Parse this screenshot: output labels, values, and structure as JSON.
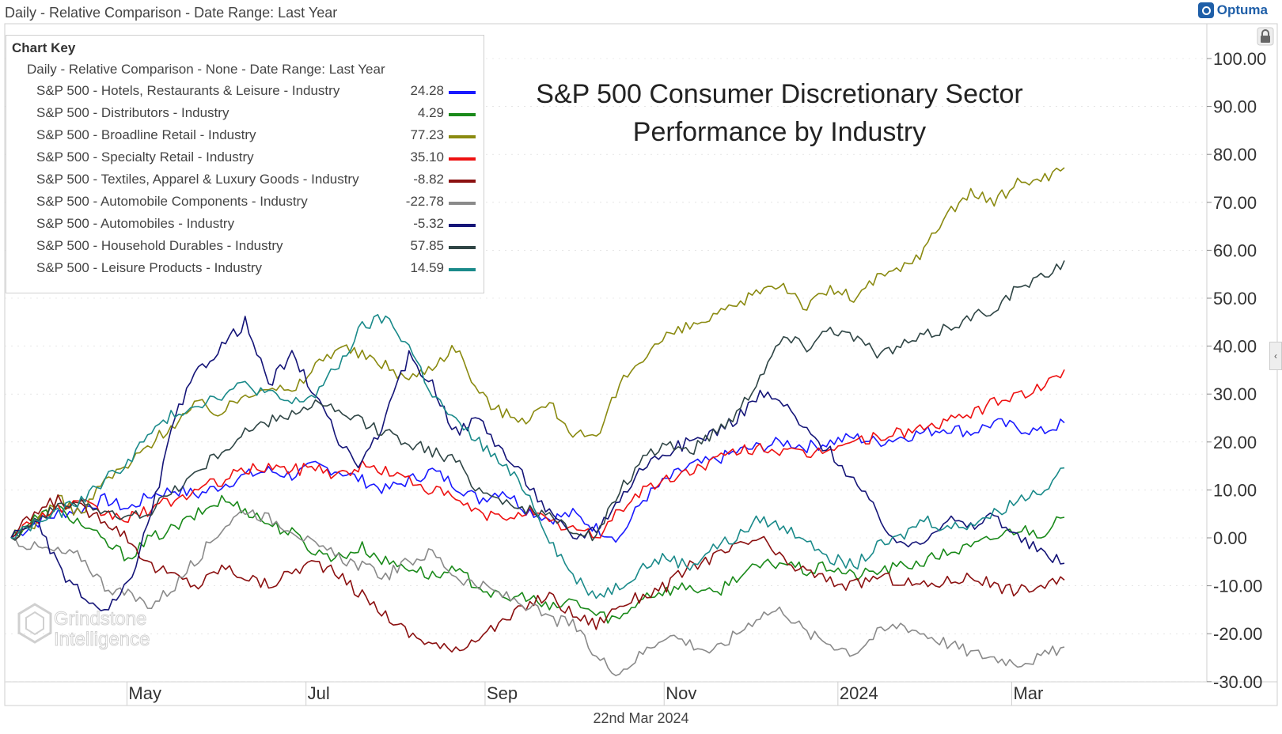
{
  "header": {
    "title": "Daily - Relative Comparison - Date Range: Last Year",
    "brand": "Optuma"
  },
  "footer": {
    "date": "22nd Mar 2024"
  },
  "watermark": {
    "line1": "Grindstone",
    "line2": "Intelligence"
  },
  "colors": {
    "grid": "#d7d7d7",
    "axis_text": "#333333"
  },
  "icons": {
    "lock": "lock-icon",
    "collapse": "chevron-left-icon"
  },
  "chart_data": {
    "type": "line",
    "title": "S&P 500 Consumer Discretionary Sector Performance by Industry",
    "title_lines": [
      "S&P 500 Consumer Discretionary Sector",
      "Performance by Industry"
    ],
    "legend_title": "Chart Key",
    "legend_subtitle": "Daily - Relative Comparison - None - Date Range: Last Year",
    "x_ticks": [
      {
        "label": "May",
        "t": 0.11
      },
      {
        "label": "Jul",
        "t": 0.28
      },
      {
        "label": "Sep",
        "t": 0.45
      },
      {
        "label": "Nov",
        "t": 0.62
      },
      {
        "label": "2024",
        "t": 0.785
      },
      {
        "label": "Mar",
        "t": 0.95
      }
    ],
    "ylim": [
      -30,
      105
    ],
    "y_ticks": [
      100,
      90,
      80,
      70,
      60,
      50,
      40,
      30,
      20,
      10,
      0,
      -10,
      -20,
      -30
    ],
    "y_tick_labels": [
      "100.00",
      "90.00",
      "80.00",
      "70.00",
      "60.00",
      "50.00",
      "40.00",
      "30.00",
      "20.00",
      "10.00",
      "0.00",
      "-10.00",
      "-20.00",
      "-30.00"
    ],
    "grid": "horizontal dashes at ticks",
    "legend_position": "top-left",
    "series": [
      {
        "name": "S&P 500 - Hotels, Restaurants & Leisure - Industry",
        "last": "24.28",
        "color": "#1a1aff",
        "values": [
          0,
          3,
          5,
          6,
          8,
          6,
          9,
          10,
          9,
          11,
          13,
          14,
          13,
          15,
          14,
          12,
          10,
          12,
          14,
          11,
          8,
          10,
          6,
          4,
          5,
          2,
          0,
          8,
          12,
          15,
          16,
          18,
          19,
          20,
          19,
          20,
          21,
          20,
          21,
          22,
          23,
          22,
          24,
          23,
          22,
          24
        ]
      },
      {
        "name": "S&P 500 - Distributors - Industry",
        "last": "4.29",
        "color": "#1a8a1a",
        "values": [
          0,
          4,
          6,
          3,
          -1,
          -4,
          0,
          2,
          5,
          8,
          6,
          3,
          1,
          -3,
          -4,
          -2,
          -5,
          -6,
          -8,
          -7,
          -10,
          -13,
          -12,
          -15,
          -13,
          -16,
          -17,
          -12,
          -11,
          -10,
          -12,
          -8,
          -6,
          -5,
          -7,
          -6,
          -8,
          -7,
          -6,
          -5,
          -3,
          -2,
          0,
          2,
          1,
          4.29
        ]
      },
      {
        "name": "S&P 500 - Broadline Retail - Industry",
        "last": "77.23",
        "color": "#8a8a10",
        "values": [
          0,
          3,
          8,
          5,
          12,
          15,
          20,
          24,
          28,
          26,
          30,
          32,
          30,
          36,
          40,
          38,
          36,
          33,
          36,
          40,
          30,
          26,
          25,
          28,
          22,
          20,
          32,
          38,
          42,
          44,
          46,
          48,
          52,
          53,
          48,
          52,
          50,
          54,
          56,
          60,
          68,
          72,
          70,
          74,
          75,
          77.23
        ]
      },
      {
        "name": "S&P 500 - Specialty Retail - Industry",
        "last": "35.10",
        "color": "#ee1111",
        "values": [
          0,
          4,
          6,
          7,
          5,
          4,
          6,
          8,
          10,
          12,
          14,
          15,
          14,
          15,
          13,
          15,
          14,
          12,
          10,
          8,
          5,
          4,
          6,
          3,
          2,
          0,
          6,
          10,
          12,
          14,
          16,
          18,
          19,
          18,
          17,
          19,
          20,
          21,
          22,
          23,
          24,
          26,
          28,
          30,
          31,
          35.1
        ]
      },
      {
        "name": "S&P 500 - Textiles, Apparel & Luxury Goods - Industry",
        "last": "-8.82",
        "color": "#8b1010",
        "values": [
          0,
          5,
          8,
          6,
          4,
          0,
          -6,
          -8,
          -10,
          -6,
          -8,
          -10,
          -7,
          -5,
          -8,
          -12,
          -16,
          -20,
          -22,
          -24,
          -20,
          -18,
          -14,
          -12,
          -16,
          -18,
          -14,
          -12,
          -10,
          -6,
          -4,
          -2,
          0,
          -5,
          -7,
          -9,
          -10,
          -8,
          -9,
          -10,
          -9,
          -8,
          -10,
          -11,
          -10,
          -8.82
        ]
      },
      {
        "name": "S&P 500 - Automobile Components - Industry",
        "last": "-22.78",
        "color": "#8a8a8a",
        "values": [
          0,
          -2,
          -3,
          -4,
          -10,
          -12,
          -14,
          -10,
          -4,
          2,
          6,
          4,
          2,
          -2,
          -4,
          -6,
          -8,
          -5,
          -3,
          -8,
          -10,
          -12,
          -14,
          -17,
          -18,
          -25,
          -28,
          -24,
          -20,
          -22,
          -24,
          -20,
          -16,
          -15,
          -20,
          -22,
          -24,
          -20,
          -18,
          -20,
          -22,
          -24,
          -25,
          -26,
          -25,
          -22.78
        ]
      },
      {
        "name": "S&P 500 - Automobiles - Industry",
        "last": "-5.32",
        "color": "#151578",
        "values": [
          0,
          4,
          -6,
          -12,
          -16,
          -10,
          5,
          25,
          35,
          40,
          45,
          32,
          38,
          30,
          20,
          15,
          25,
          38,
          32,
          22,
          25,
          18,
          12,
          5,
          0,
          2,
          8,
          15,
          18,
          20,
          22,
          25,
          30,
          28,
          22,
          18,
          12,
          5,
          -2,
          0,
          4,
          2,
          5,
          0,
          -3,
          -5.32
        ]
      },
      {
        "name": "S&P 500 - Household Durables - Industry",
        "last": "57.85",
        "color": "#2f4545",
        "values": [
          0,
          4,
          6,
          8,
          5,
          4,
          6,
          10,
          14,
          18,
          22,
          24,
          26,
          28,
          26,
          24,
          22,
          20,
          18,
          16,
          10,
          8,
          6,
          4,
          2,
          0,
          10,
          16,
          20,
          18,
          22,
          26,
          34,
          42,
          40,
          44,
          42,
          38,
          40,
          42,
          44,
          46,
          48,
          52,
          54,
          57.85
        ]
      },
      {
        "name": "S&P 500 - Leisure Products - Industry",
        "last": "14.59",
        "color": "#1a8a8a",
        "values": [
          0,
          3,
          5,
          8,
          12,
          16,
          22,
          26,
          28,
          30,
          32,
          30,
          28,
          30,
          36,
          44,
          46,
          40,
          30,
          24,
          20,
          15,
          10,
          0,
          -8,
          -12,
          -10,
          -6,
          -4,
          -6,
          -2,
          0,
          4,
          2,
          0,
          -4,
          -6,
          -2,
          0,
          4,
          2,
          3,
          5,
          8,
          10,
          14.59
        ]
      }
    ]
  }
}
